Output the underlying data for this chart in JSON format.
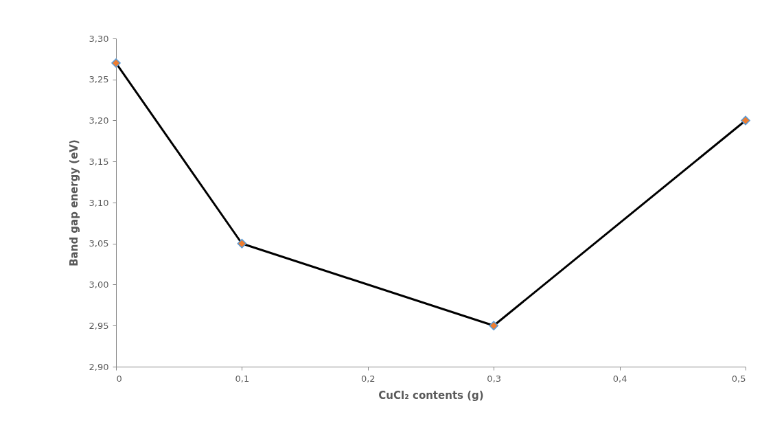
{
  "chart_data": {
    "type": "line",
    "xlabel": "CuCl₂ contents (g)",
    "ylabel": "Band gap energy (eV)",
    "x": [
      0,
      0.1,
      0.3,
      0.5
    ],
    "series": [
      {
        "color": "#000000",
        "values": [
          3.27,
          3.05,
          2.95,
          3.2
        ]
      }
    ],
    "xlim": [
      0,
      0.5
    ],
    "xticks": [
      0,
      {
        "value": 0.1,
        "label": "0,1"
      },
      {
        "value": 0.2,
        "label": "0,2"
      },
      {
        "value": 0.3,
        "label": "0,3"
      },
      {
        "value": 0.4,
        "label": "0,4"
      },
      {
        "value": 0.5,
        "label": "0,5"
      }
    ],
    "ylim": [
      2.9,
      3.3
    ],
    "yticks": [
      {
        "value": 2.9,
        "label": "2,90"
      },
      {
        "value": 2.95,
        "label": "2,95"
      },
      {
        "value": 3.0,
        "label": "3,00"
      },
      {
        "value": 3.05,
        "label": "3,05"
      },
      {
        "value": 3.1,
        "label": "3,10"
      },
      {
        "value": 3.15,
        "label": "3,15"
      },
      {
        "value": 3.2,
        "label": "3,20"
      },
      {
        "value": 3.25,
        "label": "3,25"
      },
      {
        "value": 3.3,
        "label": "3,30"
      }
    ],
    "marker": "diamond",
    "line_style": "solid",
    "grid": false
  }
}
